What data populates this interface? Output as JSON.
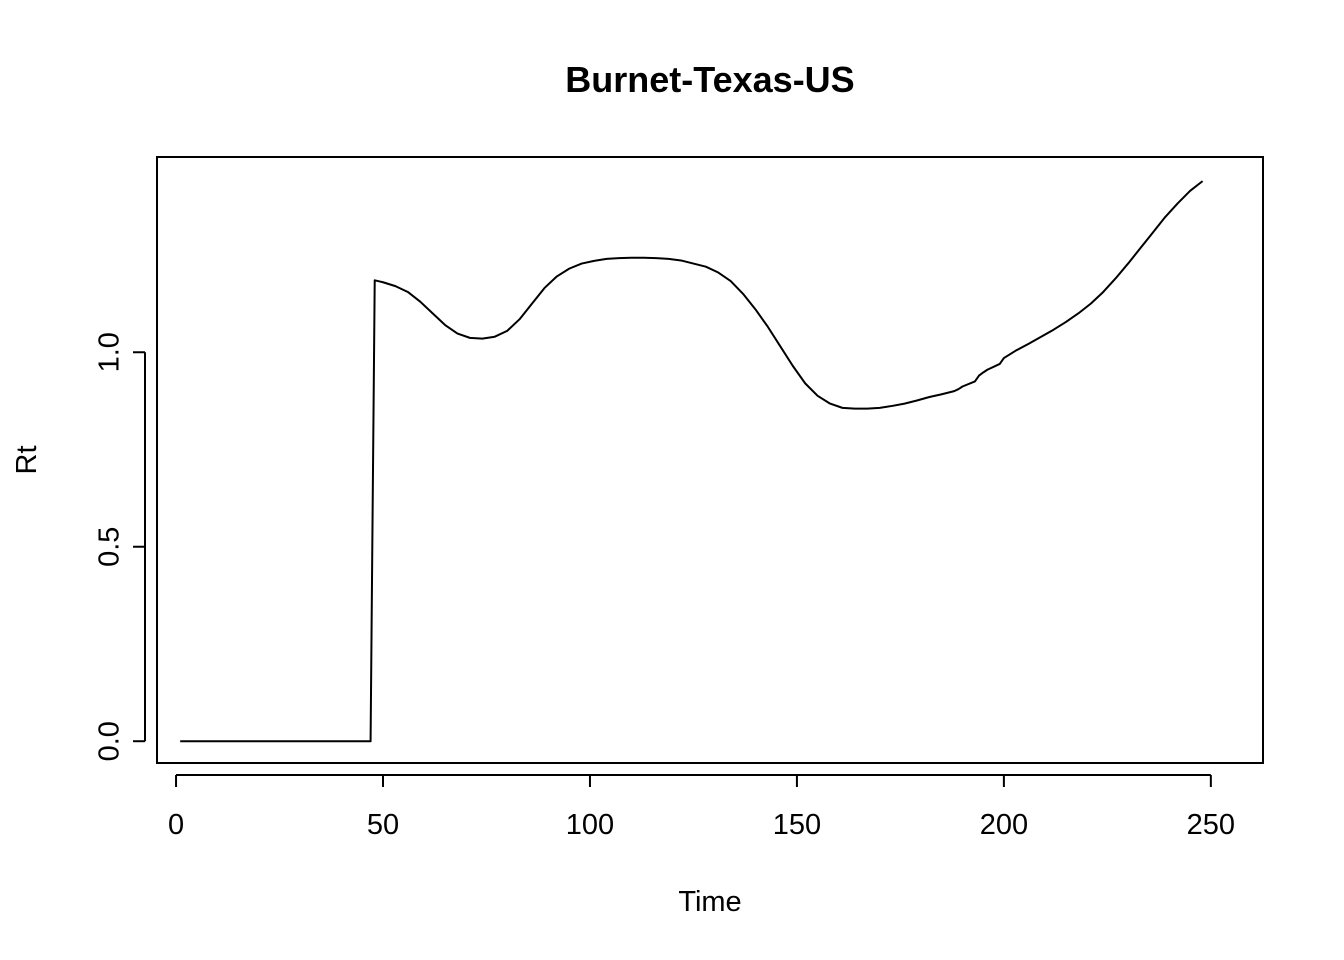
{
  "chart_data": {
    "type": "line",
    "title": "Burnet-Texas-US",
    "xlabel": "Time",
    "ylabel": "Rt",
    "xlim": [
      -4.6,
      262.6
    ],
    "ylim": [
      -0.056,
      1.502
    ],
    "x_ticks": [
      0,
      50,
      100,
      150,
      200,
      250
    ],
    "x_tick_labels": [
      "0",
      "50",
      "100",
      "150",
      "200",
      "250"
    ],
    "y_ticks": [
      0.0,
      0.5,
      1.0
    ],
    "y_tick_labels": [
      "0.0",
      "0.5",
      "1.0"
    ],
    "grid": false,
    "legend": "none",
    "line_color": "#000000",
    "series": [
      {
        "x": [
          1,
          10,
          20,
          30,
          40,
          47,
          47.5,
          48,
          50,
          53,
          56,
          59,
          62,
          65,
          68,
          71,
          74,
          77,
          80,
          83,
          86,
          89,
          92,
          95,
          98,
          101,
          104,
          107,
          110,
          113,
          116,
          119,
          122,
          125,
          128,
          131,
          134,
          137,
          140,
          143,
          146,
          149,
          152,
          155,
          158,
          161,
          164,
          167,
          170,
          173,
          176,
          179,
          182,
          185,
          188,
          189,
          190,
          193,
          194,
          195,
          196,
          199,
          200,
          203,
          206,
          209,
          212,
          215,
          218,
          221,
          224,
          227,
          230,
          233,
          236,
          239,
          242,
          245,
          248
        ],
        "y": [
          0.0,
          0.0,
          0.0,
          0.0,
          0.0,
          0.0,
          0.6,
          1.185,
          1.18,
          1.17,
          1.155,
          1.13,
          1.1,
          1.07,
          1.048,
          1.037,
          1.035,
          1.04,
          1.055,
          1.085,
          1.125,
          1.165,
          1.195,
          1.215,
          1.228,
          1.235,
          1.24,
          1.242,
          1.243,
          1.243,
          1.242,
          1.24,
          1.236,
          1.228,
          1.22,
          1.205,
          1.183,
          1.15,
          1.11,
          1.065,
          1.015,
          0.965,
          0.92,
          0.888,
          0.868,
          0.857,
          0.855,
          0.855,
          0.857,
          0.862,
          0.868,
          0.876,
          0.885,
          0.892,
          0.9,
          0.905,
          0.912,
          0.925,
          0.94,
          0.948,
          0.955,
          0.97,
          0.985,
          1.005,
          1.022,
          1.04,
          1.058,
          1.078,
          1.1,
          1.125,
          1.155,
          1.19,
          1.228,
          1.268,
          1.308,
          1.348,
          1.383,
          1.415,
          1.44
        ]
      }
    ]
  }
}
